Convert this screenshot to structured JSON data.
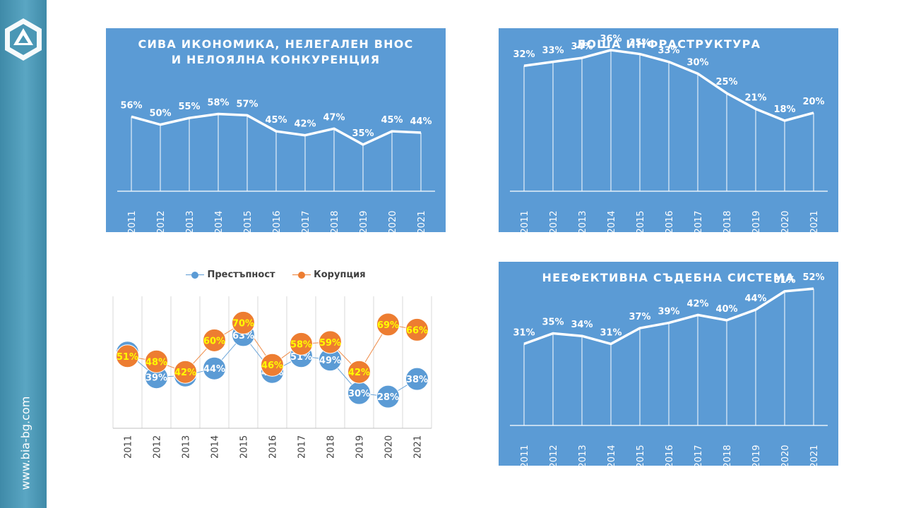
{
  "sidebar": {
    "url": "www.bia-bg.com",
    "logo_icon": "bia-hexagon-logo-icon",
    "colors": {
      "background": "#4a97b5"
    }
  },
  "colors": {
    "panel": "#5b9bd5",
    "series_crime": "#5b9bd5",
    "series_corruption": "#ed7d31",
    "corruption_label": "#ffff00"
  },
  "chart_data": [
    {
      "id": "grey",
      "type": "line",
      "title_lines": [
        "СИВА ИКОНОМИКА, НЕЛЕГАЛЕН ВНОС",
        "И НЕЛОЯЛНА КОНКУРЕНЦИЯ"
      ],
      "categories": [
        "2011",
        "2012",
        "2013",
        "2014",
        "2015",
        "2016",
        "2017",
        "2018",
        "2019",
        "2020",
        "2021"
      ],
      "values": [
        56,
        50,
        55,
        58,
        57,
        45,
        42,
        47,
        35,
        45,
        44
      ],
      "data_labels": [
        "56%",
        "50%",
        "55%",
        "58%",
        "57%",
        "45%",
        "42%",
        "47%",
        "35%",
        "45%",
        "44%"
      ],
      "ylim": [
        0,
        80
      ],
      "grid": false
    },
    {
      "id": "infra",
      "type": "line",
      "title_lines": [
        "ЛОША ИНФРАСТРУКТУРА"
      ],
      "categories": [
        "2011",
        "2012",
        "2013",
        "2014",
        "2015",
        "2016",
        "2017",
        "2018",
        "2019",
        "2020",
        "2021"
      ],
      "values": [
        32,
        33,
        34,
        36,
        35,
        33,
        30,
        25,
        21,
        18,
        20
      ],
      "data_labels": [
        "32%",
        "33%",
        "34%",
        "36%",
        "35%",
        "33%",
        "30%",
        "25%",
        "21%",
        "18%",
        "20%"
      ],
      "ylim": [
        0,
        45
      ],
      "grid": false
    },
    {
      "id": "crime",
      "type": "line",
      "title_lines": [],
      "legend": [
        "Престъпност",
        "Корупция"
      ],
      "legend_position": "top",
      "categories": [
        "2011",
        "2012",
        "2013",
        "2014",
        "2015",
        "2016",
        "2017",
        "2018",
        "2019",
        "2020",
        "2021"
      ],
      "series": [
        {
          "name": "Престъпност",
          "values": [
            53,
            39,
            40,
            44,
            63,
            42,
            51,
            49,
            30,
            28,
            38
          ],
          "data_labels": [
            "53%",
            "39%",
            "40%",
            "44%",
            "63%",
            "42%",
            "51%",
            "49%",
            "30%",
            "28%",
            "38%"
          ]
        },
        {
          "name": "Корупция",
          "values": [
            51,
            48,
            42,
            60,
            70,
            46,
            58,
            59,
            42,
            69,
            66
          ],
          "data_labels": [
            "51%",
            "48%",
            "42%",
            "60%",
            "70%",
            "46%",
            "58%",
            "59%",
            "42%",
            "69%",
            "66%"
          ]
        }
      ],
      "ylim": [
        10,
        85
      ],
      "grid": true
    },
    {
      "id": "court",
      "type": "line",
      "title_lines": [
        "НЕЕФЕКТИВНА СЪДЕБНА СИСТЕМА"
      ],
      "categories": [
        "2011",
        "2012",
        "2013",
        "2014",
        "2015",
        "2016",
        "2017",
        "2018",
        "2019",
        "2020",
        "2021"
      ],
      "values": [
        31,
        35,
        34,
        31,
        37,
        39,
        42,
        40,
        44,
        51,
        52
      ],
      "data_labels": [
        "31%",
        "35%",
        "34%",
        "31%",
        "37%",
        "39%",
        "42%",
        "40%",
        "44%",
        "51%",
        "52%"
      ],
      "ylim": [
        0,
        70
      ],
      "grid": false
    }
  ]
}
